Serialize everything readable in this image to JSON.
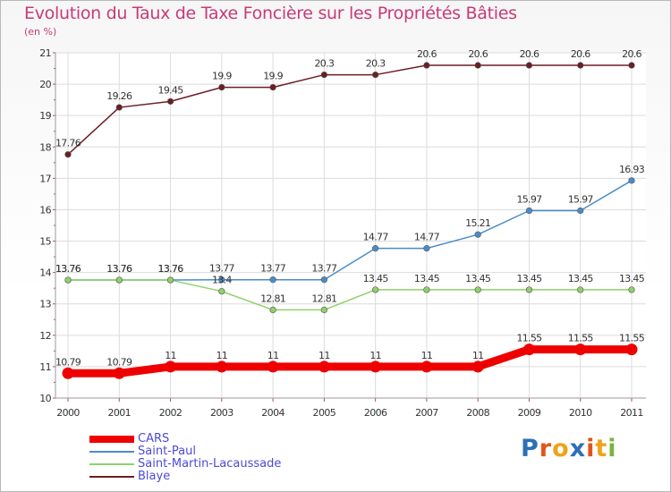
{
  "chart_data": {
    "type": "line",
    "title": "Evolution du Taux de Taxe Foncière sur les Propriétés Bâties",
    "unit_label": "(en %)",
    "xlabel": "",
    "ylabel": "",
    "categories": [
      "2000",
      "2001",
      "2002",
      "2003",
      "2004",
      "2005",
      "2006",
      "2007",
      "2008",
      "2009",
      "2010",
      "2011"
    ],
    "ylim": [
      10,
      21
    ],
    "yticks": [
      "10",
      "11",
      "12",
      "13",
      "14",
      "15",
      "16",
      "17",
      "18",
      "19",
      "20",
      "21"
    ],
    "grid": true,
    "legend_position": "bottom-left",
    "series": [
      {
        "name": "Blaye",
        "color": "#6b1e24",
        "values": [
          17.76,
          19.26,
          19.45,
          19.9,
          19.9,
          20.3,
          20.3,
          20.6,
          20.6,
          20.6,
          20.6,
          20.6
        ],
        "labels": [
          "17.76",
          "19.26",
          "19.45",
          "19.9",
          "19.9",
          "20.3",
          "20.3",
          "20.6",
          "20.6",
          "20.6",
          "20.6",
          "20.6"
        ]
      },
      {
        "name": "Saint-Paul",
        "color": "#4a8cc7",
        "values": [
          13.76,
          13.76,
          13.76,
          13.77,
          13.77,
          13.77,
          14.77,
          14.77,
          15.21,
          15.97,
          15.97,
          16.93
        ],
        "labels": [
          "13.76",
          "13.76",
          "13.76",
          "13.77",
          "13.77",
          "13.77",
          "14.77",
          "14.77",
          "15.21",
          "15.97",
          "15.97",
          "16.93"
        ]
      },
      {
        "name": "Saint-Martin-Lacaussade",
        "color": "#8fd16a",
        "values": [
          13.76,
          13.76,
          13.76,
          13.4,
          12.81,
          12.81,
          13.45,
          13.45,
          13.45,
          13.45,
          13.45,
          13.45
        ],
        "labels": [
          "13.76",
          "13.76",
          "13.76",
          "13.4",
          "12.81",
          "12.81",
          "13.45",
          "13.45",
          "13.45",
          "13.45",
          "13.45",
          "13.45"
        ]
      },
      {
        "name": "CARS",
        "color": "#ee0000",
        "values": [
          10.79,
          10.79,
          11,
          11,
          11,
          11,
          11,
          11,
          11,
          11.55,
          11.55,
          11.55
        ],
        "labels": [
          "10.79",
          "10.79",
          "11",
          "11",
          "11",
          "11",
          "11",
          "11",
          "11",
          "11.55",
          "11.55",
          "11.55"
        ]
      }
    ]
  },
  "legend": [
    {
      "name": "CARS",
      "color": "#ee0000"
    },
    {
      "name": "Saint-Paul",
      "color": "#4a8cc7"
    },
    {
      "name": "Saint-Martin-Lacaussade",
      "color": "#8fd16a"
    },
    {
      "name": "Blaye",
      "color": "#6b1e24"
    }
  ],
  "brand": {
    "text": "Proxiti",
    "letter_colors": [
      "#2f6fb6",
      "#e2541b",
      "#f0a21a",
      "#2f6fb6",
      "#e2541b",
      "#f0a21a",
      "#7ab43b"
    ]
  }
}
